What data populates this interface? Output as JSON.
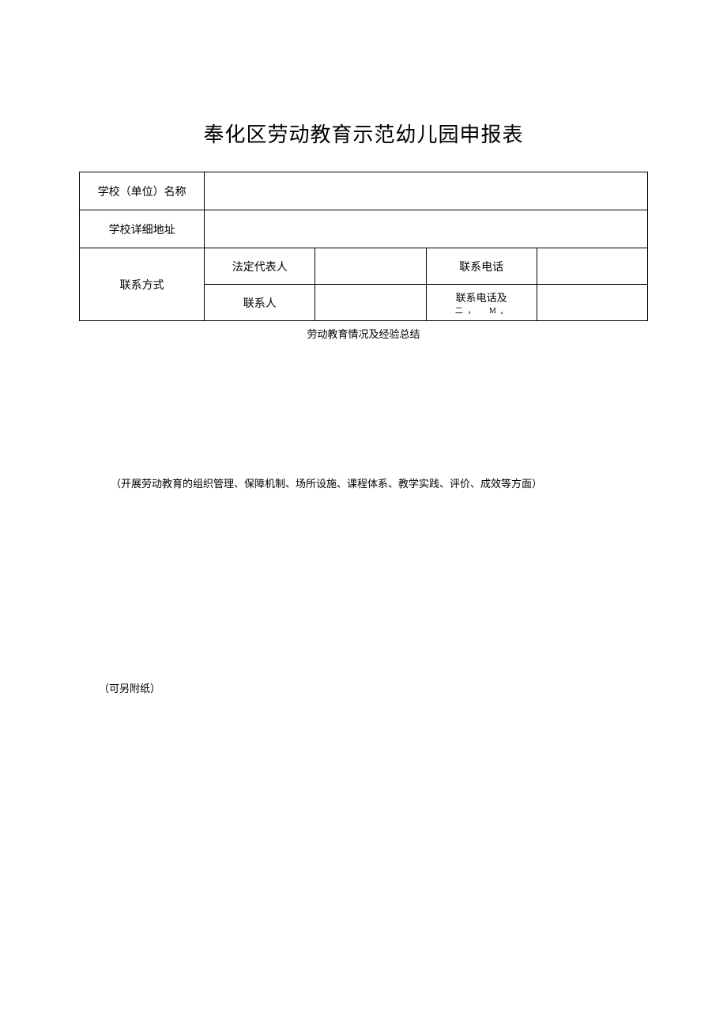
{
  "title": "奉化区劳动教育示范幼儿园申报表",
  "rows": {
    "school_name_label": "学校（单位）名称",
    "school_name_value": "",
    "school_address_label": "学校详细地址",
    "school_address_value": "",
    "contact_label": "联系方式",
    "legal_rep_label": "法定代表人",
    "legal_rep_value": "",
    "legal_phone_label": "联系电话",
    "legal_phone_value": "",
    "contact_person_label": "联系人",
    "contact_person_value": "",
    "contact_phone_label": "联系电话及",
    "contact_phone_sub": "二，　Mₐ",
    "contact_phone_value": ""
  },
  "section_label": "劳动教育情况及经验总结",
  "description": "（开展劳动教育的组织管理、保障机制、场所设施、课程体系、教学实践、评价、成效等方面）",
  "note": "（可另附纸）",
  "colors": {
    "text": "#000000",
    "border": "#000000",
    "background": "#ffffff"
  },
  "fontsize": {
    "title": 26,
    "body": 14,
    "small": 13
  }
}
